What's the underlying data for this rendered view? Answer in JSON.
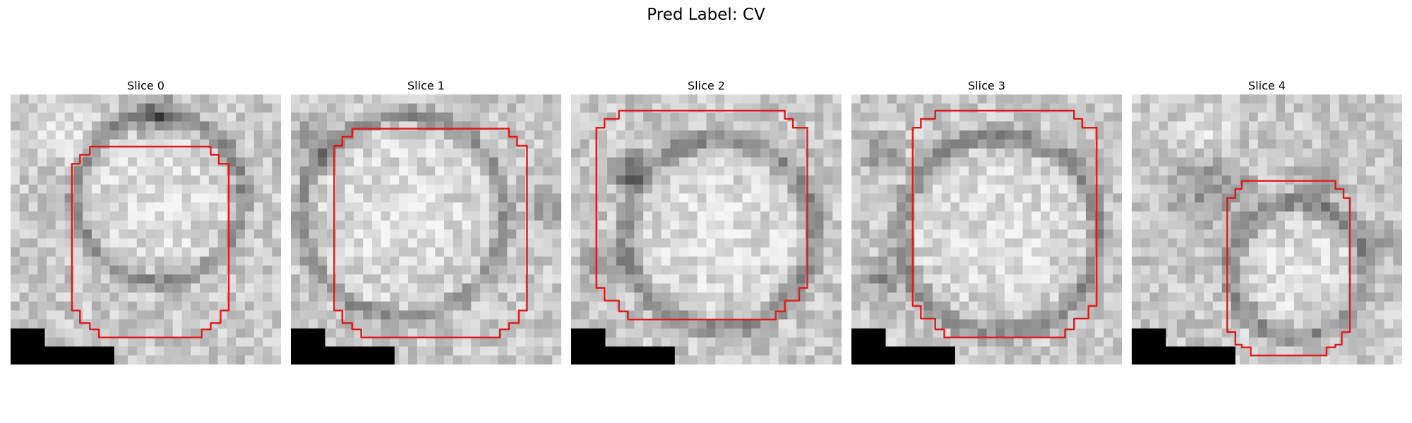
{
  "figure": {
    "title": "Pred Label: CV"
  },
  "panels": [
    {
      "title": "Slice 0"
    },
    {
      "title": "Slice 1"
    },
    {
      "title": "Slice 2"
    },
    {
      "title": "Slice 3"
    },
    {
      "title": "Slice 4"
    }
  ],
  "colors": {
    "contour": "#e01919",
    "mask": "#000000"
  }
}
